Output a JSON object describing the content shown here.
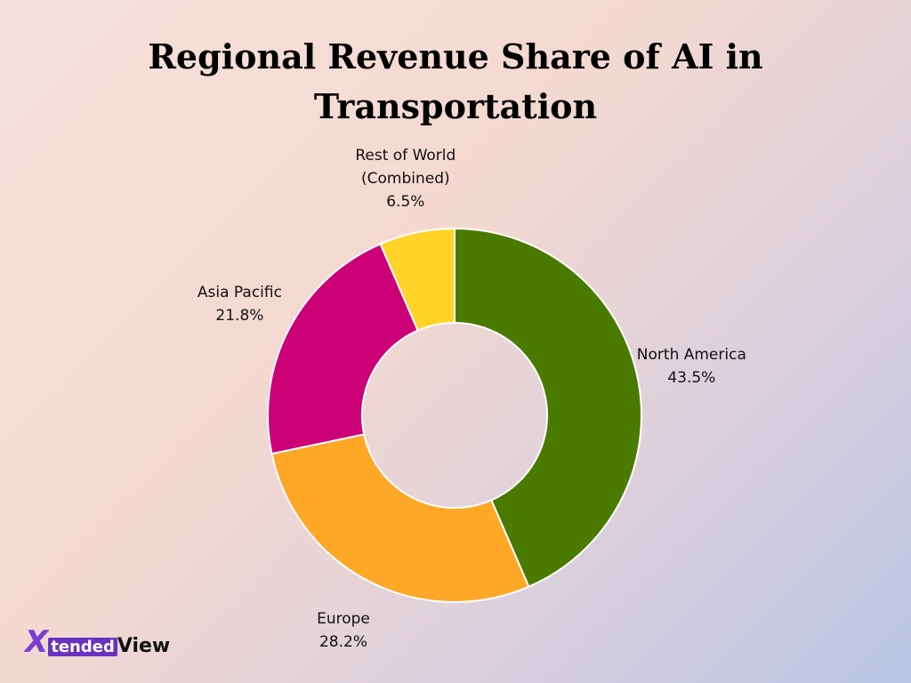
{
  "chart_data": {
    "type": "donut",
    "title": "Regional Revenue Share of AI in Transportation",
    "categories": [
      "North America",
      "Europe",
      "Asia Pacific",
      "Rest of World (Combined)"
    ],
    "values": [
      43.5,
      28.2,
      21.8,
      6.5
    ],
    "value_labels": [
      "43.5%",
      "28.2%",
      "21.8%",
      "6.5%"
    ],
    "colors": [
      "#4a7a00",
      "#ffa726",
      "#cc0077",
      "#ffd426"
    ]
  },
  "logo": {
    "mark": "X",
    "text": "tended",
    "text2": "View"
  }
}
